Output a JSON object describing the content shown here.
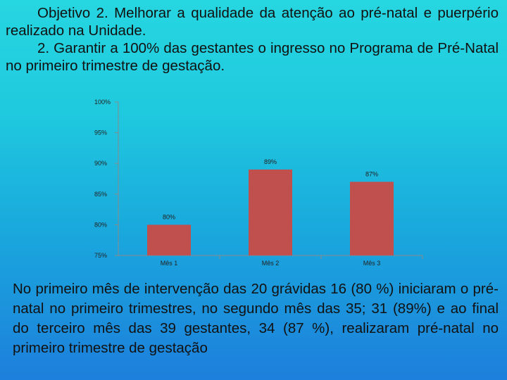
{
  "heading": {
    "line1": "Objetivo 2. Melhorar a qualidade da atenção ao pré-natal e puerpério realizado na Unidade.",
    "line2": "2. Garantir a 100% das gestantes o ingresso no Programa de Pré-Natal no primeiro trimestre de gestação."
  },
  "chart_data": {
    "type": "bar",
    "categories": [
      "Mês 1",
      "Mês 2",
      "Mês 3"
    ],
    "values": [
      80,
      89,
      87
    ],
    "data_labels": [
      "80%",
      "89%",
      "87%"
    ],
    "ylim": [
      75,
      100
    ],
    "yticks": [
      "75%",
      "80%",
      "85%",
      "90%",
      "95%",
      "100%"
    ],
    "title": "",
    "xlabel": "",
    "ylabel": "",
    "bar_color": "#c0504d",
    "grid": false
  },
  "footer": {
    "text": "No primeiro mês de intervenção das 20 grávidas 16 (80 %) iniciaram o pré-natal no primeiro trimestres, no segundo mês das 35; 31 (89%) e ao final do terceiro mês das 39 gestantes, 34 (87 %), realizaram pré-natal no primeiro trimestre de gestação"
  }
}
